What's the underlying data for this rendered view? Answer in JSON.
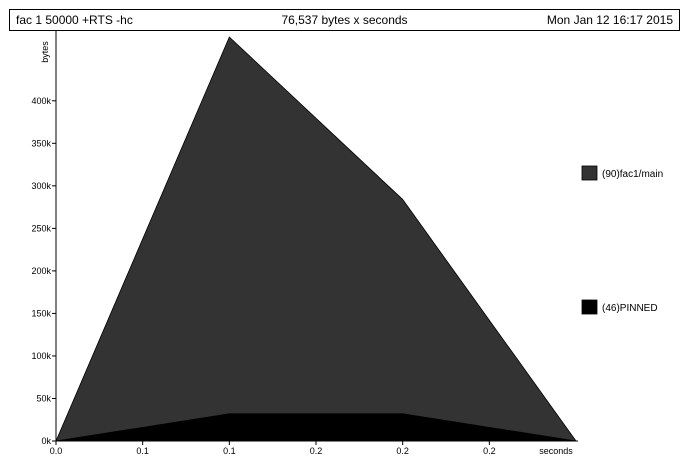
{
  "header": {
    "command": "fac 1 50000 +RTS -hc",
    "total": "76,537 bytes x seconds",
    "date": "Mon Jan 12 16:17 2015"
  },
  "chart_data": {
    "type": "area",
    "stacked": true,
    "xlabel": "seconds",
    "ylabel": "bytes",
    "x": [
      0.0,
      0.1,
      0.2,
      0.3
    ],
    "xlim": [
      0.0,
      0.3
    ],
    "ylim": [
      0,
      475000
    ],
    "x_ticks": [
      {
        "value": 0.0,
        "label": "0.0"
      },
      {
        "value": 0.05,
        "label": "0.1"
      },
      {
        "value": 0.1,
        "label": "0.1"
      },
      {
        "value": 0.15,
        "label": "0.2"
      },
      {
        "value": 0.2,
        "label": "0.2"
      },
      {
        "value": 0.25,
        "label": "0.2"
      }
    ],
    "y_ticks": [
      {
        "value": 0,
        "label": "0k"
      },
      {
        "value": 50000,
        "label": "50k"
      },
      {
        "value": 100000,
        "label": "100k"
      },
      {
        "value": 150000,
        "label": "150k"
      },
      {
        "value": 200000,
        "label": "200k"
      },
      {
        "value": 250000,
        "label": "250k"
      },
      {
        "value": 300000,
        "label": "300k"
      },
      {
        "value": 350000,
        "label": "350k"
      },
      {
        "value": 400000,
        "label": "400k"
      }
    ],
    "series": [
      {
        "name": "(46)PINNED",
        "color": "#000000",
        "values": [
          0,
          32000,
          32000,
          0
        ]
      },
      {
        "name": "(90)fac1/main",
        "color": "#333333",
        "values": [
          0,
          443000,
          252000,
          0
        ]
      }
    ],
    "legend_position": "right"
  }
}
